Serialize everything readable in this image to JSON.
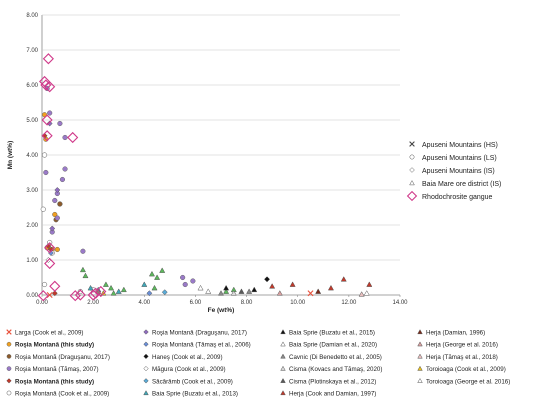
{
  "chart_data": {
    "type": "scatter",
    "xlabel": "Fe (wt%)",
    "ylabel": "Mn (wt%)",
    "xlim": [
      0,
      14
    ],
    "ylim": [
      0,
      8
    ],
    "x_ticks": [
      "0.00",
      "2.00",
      "4.00",
      "6.00",
      "8.00",
      "10.00",
      "12.00",
      "14.00"
    ],
    "y_ticks": [
      "0.00",
      "1.00",
      "2.00",
      "3.00",
      "4.00",
      "5.00",
      "6.00",
      "7.00",
      "8.00"
    ],
    "grid": "horizontal",
    "legend_right": [
      {
        "marker": "x",
        "label": "Apuseni Mountains (HS)"
      },
      {
        "marker": "circle",
        "label": "Apuseni Mountains (LS)"
      },
      {
        "marker": "diamond",
        "label": "Apuseni Mountains (IS)"
      },
      {
        "marker": "triangle",
        "label": "Baia Mare ore district (IS)"
      },
      {
        "marker": "diamond-large",
        "label": "Rhodochrosite gangue"
      }
    ],
    "legend_bottom": [
      {
        "label": "Larga  (Cook et al., 2009)",
        "marker": "x",
        "color": "#e8503a",
        "bold": false
      },
      {
        "label": "Roşia Montană (this study)",
        "marker": "circle",
        "color": "#f0a020",
        "bold": true
      },
      {
        "label": "Roşia Montană (Draguşanu, 2017)",
        "marker": "circle",
        "color": "#8b5a2b",
        "bold": false
      },
      {
        "label": "Roşia Montană (Tămaş, 2007)",
        "marker": "circle",
        "color": "#9a7ac8",
        "bold": false
      },
      {
        "label": "Roşia Montană (this study)",
        "marker": "diamond",
        "color": "#c0392b",
        "bold": true
      },
      {
        "label": "Roşia Montană (Cook et al., 2009)",
        "marker": "circle",
        "color": "#ffffff",
        "bold": false
      },
      {
        "label": "Roşia Montană (Draguşanu, 2017)",
        "marker": "diamond",
        "color": "#8e6bbf",
        "bold": false
      },
      {
        "label": "Roşia Montană (Tămaş et al., 2006)",
        "marker": "diamond",
        "color": "#6b8fd6",
        "bold": false
      },
      {
        "label": "Haneş (Cook et al., 2009)",
        "marker": "diamond",
        "color": "#111111",
        "bold": false
      },
      {
        "label": "Măgura (Cook et al., 2009)",
        "marker": "diamond",
        "color": "#ffffff",
        "bold": false
      },
      {
        "label": "Săcărâmb  (Cook et al., 2009)",
        "marker": "diamond",
        "color": "#5aaad6",
        "bold": false
      },
      {
        "label": "Baia Sprie (Buzatu et al., 2013)",
        "marker": "triangle",
        "color": "#3fa7b8",
        "bold": false
      },
      {
        "label": "Baia Sprie (Buzatu et al., 2015)",
        "marker": "triangle",
        "color": "#111111",
        "bold": false
      },
      {
        "label": "Baia Sprie (Damian et al., 2020)",
        "marker": "triangle",
        "color": "#ffffff",
        "bold": false
      },
      {
        "label": "Cavnic (Di Benedetto et al., 2005)",
        "marker": "triangle",
        "color": "#8a8a8a",
        "bold": false
      },
      {
        "label": "Cisma (Kovacs and Tămaş, 2020)",
        "marker": "triangle",
        "color": "#d8d8d8",
        "bold": false
      },
      {
        "label": "Cisma (Plotinskaya et al., 2012)",
        "marker": "triangle",
        "color": "#5a5a5a",
        "bold": false
      },
      {
        "label": "Herja (Cook and Damian, 1997)",
        "marker": "triangle",
        "color": "#c0392b",
        "bold": false
      },
      {
        "label": "Herja (Damian, 1996)",
        "marker": "triangle",
        "color": "#7a2a1a",
        "bold": false
      },
      {
        "label": "Herja (George et al. 2016)",
        "marker": "triangle",
        "color": "#d8a0a0",
        "bold": false
      },
      {
        "label": "Herja (Tămaş et al., 2018)",
        "marker": "triangle",
        "color": "#e8c0c0",
        "bold": false
      },
      {
        "label": "Toroioaga (Cook et al., 2009)",
        "marker": "triangle",
        "color": "#e8c020",
        "bold": false
      },
      {
        "label": "Toroioaga (George et al. 2016)",
        "marker": "triangle",
        "color": "#ffffff",
        "bold": false
      }
    ],
    "series": [
      {
        "marker": "x",
        "color": "#e8503a",
        "points": [
          [
            10.5,
            0.05
          ],
          [
            0.3,
            0.0
          ]
        ]
      },
      {
        "marker": "circle",
        "color": "#f0a020",
        "points": [
          [
            0.1,
            5.15
          ],
          [
            0.15,
            4.45
          ],
          [
            0.2,
            1.35
          ],
          [
            0.4,
            1.3
          ],
          [
            0.5,
            2.3
          ],
          [
            0.7,
            2.6
          ],
          [
            0.6,
            1.3
          ]
        ]
      },
      {
        "marker": "circle",
        "color": "#8b5a2b",
        "points": [
          [
            0.55,
            2.15
          ],
          [
            0.7,
            2.6
          ]
        ]
      },
      {
        "marker": "circle",
        "color": "#9a7ac8",
        "points": [
          [
            0.2,
            5.9
          ],
          [
            0.3,
            5.2
          ],
          [
            0.7,
            4.9
          ],
          [
            0.9,
            4.5
          ],
          [
            0.9,
            3.6
          ],
          [
            0.8,
            3.3
          ],
          [
            0.6,
            2.9
          ],
          [
            0.5,
            2.7
          ],
          [
            0.6,
            2.2
          ],
          [
            0.4,
            1.8
          ],
          [
            1.6,
            1.25
          ],
          [
            0.15,
            3.5
          ],
          [
            5.5,
            0.5
          ],
          [
            5.9,
            0.4
          ],
          [
            5.6,
            0.3
          ]
        ]
      },
      {
        "marker": "circle",
        "color": "#ffffff",
        "points": [
          [
            0.1,
            4.0
          ],
          [
            0.05,
            2.45
          ],
          [
            0.3,
            1.5
          ],
          [
            0.4,
            1.2
          ],
          [
            0.1,
            0.3
          ],
          [
            1.5,
            0.1
          ],
          [
            2.0,
            0.15
          ]
        ]
      },
      {
        "marker": "diamond",
        "color": "#c0392b",
        "points": [
          [
            0.1,
            4.55
          ],
          [
            0.35,
            1.3
          ],
          [
            0.25,
            1.4
          ],
          [
            0.5,
            0.05
          ]
        ]
      },
      {
        "marker": "diamond",
        "color": "#8e6bbf",
        "points": [
          [
            0.3,
            4.9
          ],
          [
            0.6,
            3.0
          ],
          [
            0.4,
            1.9
          ]
        ]
      },
      {
        "marker": "diamond",
        "color": "#6b8fd6",
        "points": [
          [
            0.35,
            1.2
          ],
          [
            4.2,
            0.05
          ]
        ]
      },
      {
        "marker": "diamond",
        "color": "#111111",
        "points": [
          [
            8.8,
            0.45
          ]
        ]
      },
      {
        "marker": "diamond",
        "color": "#ffffff",
        "points": [
          [
            0.25,
            1.0
          ]
        ]
      },
      {
        "marker": "diamond",
        "color": "#5aaad6",
        "points": [
          [
            4.8,
            0.08
          ]
        ]
      },
      {
        "marker": "triangle",
        "color": "#3fa7b8",
        "points": [
          [
            1.9,
            0.2
          ],
          [
            2.2,
            0.15
          ],
          [
            3.0,
            0.1
          ],
          [
            4.0,
            0.3
          ]
        ]
      },
      {
        "marker": "triangle",
        "color": "#5cb85c",
        "points": [
          [
            1.6,
            0.72
          ],
          [
            1.7,
            0.55
          ],
          [
            2.5,
            0.3
          ],
          [
            2.7,
            0.2
          ],
          [
            3.2,
            0.15
          ],
          [
            4.3,
            0.6
          ],
          [
            4.5,
            0.5
          ],
          [
            4.7,
            0.7
          ],
          [
            4.4,
            0.2
          ],
          [
            2.2,
            0.1
          ],
          [
            2.8,
            0.05
          ],
          [
            7.2,
            0.1
          ],
          [
            7.5,
            0.15
          ]
        ]
      },
      {
        "marker": "triangle",
        "color": "#111111",
        "points": [
          [
            7.2,
            0.2
          ],
          [
            8.3,
            0.15
          ]
        ]
      },
      {
        "marker": "triangle",
        "color": "#ffffff",
        "points": [
          [
            6.5,
            0.1
          ],
          [
            6.2,
            0.2
          ]
        ]
      },
      {
        "marker": "triangle",
        "color": "#8a8a8a",
        "points": [
          [
            7.0,
            0.05
          ],
          [
            8.1,
            0.1
          ]
        ]
      },
      {
        "marker": "triangle",
        "color": "#d8d8d8",
        "points": [
          [
            7.5,
            0.05
          ]
        ]
      },
      {
        "marker": "triangle",
        "color": "#5a5a5a",
        "points": [
          [
            7.8,
            0.1
          ]
        ]
      },
      {
        "marker": "triangle",
        "color": "#c0392b",
        "points": [
          [
            9.0,
            0.25
          ],
          [
            9.8,
            0.3
          ],
          [
            11.3,
            0.2
          ],
          [
            11.8,
            0.45
          ],
          [
            12.8,
            0.3
          ]
        ]
      },
      {
        "marker": "triangle",
        "color": "#7a2a1a",
        "points": [
          [
            10.8,
            0.1
          ]
        ]
      },
      {
        "marker": "triangle",
        "color": "#d8a0a0",
        "points": [
          [
            9.3,
            0.05
          ]
        ]
      },
      {
        "marker": "triangle",
        "color": "#e8c0c0",
        "points": [
          [
            12.5,
            0.02
          ]
        ]
      },
      {
        "marker": "triangle",
        "color": "#e8c020",
        "points": [
          [
            2.4,
            0.05
          ]
        ]
      },
      {
        "marker": "triangle",
        "color": "#ffffff",
        "points": [
          [
            12.7,
            0.05
          ]
        ]
      }
    ],
    "rhodochrosite": [
      [
        0.25,
        6.75
      ],
      [
        0.1,
        6.1
      ],
      [
        0.15,
        6.0
      ],
      [
        0.3,
        5.95
      ],
      [
        0.2,
        5.0
      ],
      [
        1.2,
        4.5
      ],
      [
        0.2,
        4.55
      ],
      [
        0.3,
        1.35
      ],
      [
        0.3,
        0.9
      ],
      [
        0.5,
        0.25
      ],
      [
        1.3,
        -0.02
      ],
      [
        2.0,
        0.0
      ],
      [
        2.1,
        0.05
      ],
      [
        2.3,
        0.1
      ],
      [
        1.5,
        0.0
      ],
      [
        0.05,
        -0.02
      ]
    ]
  }
}
